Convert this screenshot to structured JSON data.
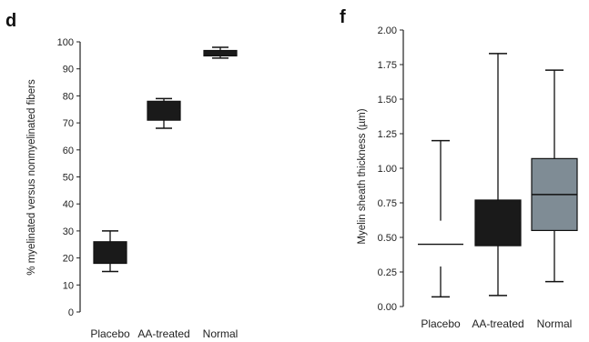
{
  "chart_data": [
    {
      "panel": "d",
      "type": "box",
      "ylabel": "% myelinated versus nonmyelinated fibers",
      "ylim": [
        0,
        100
      ],
      "yticks": [
        "0",
        "10",
        "20",
        "30",
        "40",
        "50",
        "60",
        "70",
        "80",
        "90",
        "100"
      ],
      "categories": [
        "Placebo",
        "AA-treated",
        "Normal"
      ],
      "boxes": [
        {
          "min": 15,
          "q1": 18,
          "median": 23,
          "q3": 26,
          "max": 30,
          "color": "#1a1a1a"
        },
        {
          "min": 68,
          "q1": 71,
          "median": 75,
          "q3": 78,
          "max": 79,
          "color": "#1a1a1a"
        },
        {
          "min": 94,
          "q1": 94.8,
          "median": 96,
          "q3": 96.8,
          "max": 98,
          "color": "#1a1a1a"
        }
      ]
    },
    {
      "panel": "f",
      "type": "box",
      "ylabel": "Myelin sheath thickness (µm)",
      "ylim": [
        0,
        2.0
      ],
      "yticks": [
        "0.00",
        "0.25",
        "0.50",
        "0.75",
        "1.00",
        "1.25",
        "1.50",
        "1.75",
        "2.00"
      ],
      "categories": [
        "Placebo",
        "AA-treated",
        "Normal"
      ],
      "boxes": [
        {
          "min": 0.07,
          "q1": 0.29,
          "median": 0.45,
          "q3": 0.62,
          "max": 1.2,
          "color": "#ffffff"
        },
        {
          "min": 0.08,
          "q1": 0.44,
          "median": 0.62,
          "q3": 0.77,
          "max": 1.83,
          "color": "#1a1a1a"
        },
        {
          "min": 0.18,
          "q1": 0.55,
          "median": 0.81,
          "q3": 1.07,
          "max": 1.71,
          "color": "#7f8c95"
        }
      ]
    }
  ]
}
